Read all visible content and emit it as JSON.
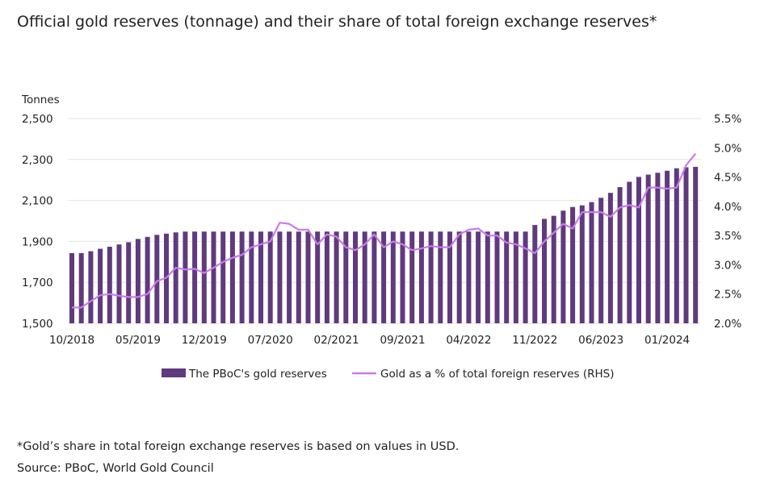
{
  "title": "Official gold reserves (tonnage) and their share of total foreign exchange reserves*",
  "footnote": "*Gold’s share in total foreign exchange reserves is based on values in USD.",
  "source": "Source: PBoC, World Gold Council",
  "colors": {
    "bars": "#5f3a7e",
    "line": "#c97be8",
    "grid": "#e6e6e6"
  },
  "chart_data": {
    "type": "bar+line",
    "title": "Official gold reserves (tonnage) and their share of total foreign exchange reserves*",
    "ylabel": "Tonnes",
    "ylim": [
      1500,
      2500
    ],
    "yticks": [
      "1,500",
      "1,700",
      "1,900",
      "2,100",
      "2,300",
      "2,500"
    ],
    "y2lim": [
      2.0,
      5.5
    ],
    "y2ticks": [
      "2.0%",
      "2.5%",
      "3.0%",
      "3.5%",
      "4.0%",
      "4.5%",
      "5.0%",
      "5.5%"
    ],
    "xticks": [
      "10/2018",
      "05/2019",
      "12/2019",
      "07/2020",
      "02/2021",
      "09/2021",
      "04/2022",
      "11/2022",
      "06/2023",
      "01/2024"
    ],
    "start_month": "10/2018",
    "end_month": "04/2024",
    "grid": true,
    "legend_position": "bottom",
    "series": [
      {
        "name": "The PBoC's gold reserves",
        "type": "bar",
        "axis": "left",
        "values": [
          1843,
          1843,
          1852,
          1864,
          1874,
          1885,
          1896,
          1912,
          1922,
          1932,
          1938,
          1944,
          1948,
          1948,
          1948,
          1948,
          1948,
          1948,
          1948,
          1948,
          1948,
          1948,
          1948,
          1948,
          1948,
          1948,
          1948,
          1948,
          1948,
          1948,
          1948,
          1948,
          1948,
          1948,
          1948,
          1948,
          1948,
          1948,
          1948,
          1948,
          1948,
          1948,
          1948,
          1948,
          1948,
          1948,
          1948,
          1948,
          1948,
          1980,
          2010,
          2025,
          2050,
          2068,
          2076,
          2092,
          2113,
          2137,
          2165,
          2191,
          2215,
          2226,
          2235,
          2245,
          2257,
          2262,
          2264
        ]
      },
      {
        "name": "Gold as a % of total foreign reserves (RHS)",
        "type": "line",
        "axis": "right",
        "values": [
          2.27,
          2.27,
          2.38,
          2.48,
          2.5,
          2.47,
          2.45,
          2.45,
          2.5,
          2.72,
          2.78,
          2.95,
          2.92,
          2.93,
          2.86,
          2.95,
          3.05,
          3.12,
          3.17,
          3.3,
          3.35,
          3.4,
          3.72,
          3.7,
          3.6,
          3.6,
          3.35,
          3.52,
          3.48,
          3.3,
          3.25,
          3.35,
          3.52,
          3.3,
          3.4,
          3.35,
          3.25,
          3.28,
          3.32,
          3.3,
          3.3,
          3.52,
          3.6,
          3.62,
          3.5,
          3.5,
          3.38,
          3.35,
          3.28,
          3.2,
          3.4,
          3.55,
          3.7,
          3.62,
          3.9,
          3.9,
          3.9,
          3.82,
          3.98,
          4.02,
          3.98,
          4.32,
          4.32,
          4.3,
          4.32,
          4.7,
          4.9
        ]
      }
    ]
  }
}
